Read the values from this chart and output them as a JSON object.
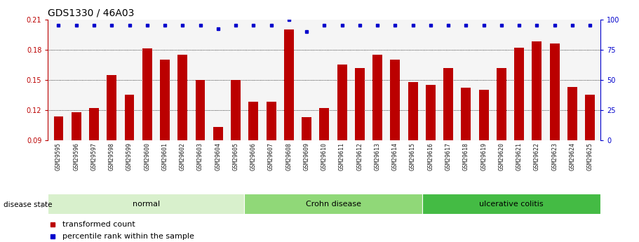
{
  "title": "GDS1330 / 46A03",
  "samples": [
    "GSM29595",
    "GSM29596",
    "GSM29597",
    "GSM29598",
    "GSM29599",
    "GSM29600",
    "GSM29601",
    "GSM29602",
    "GSM29603",
    "GSM29604",
    "GSM29605",
    "GSM29606",
    "GSM29607",
    "GSM29608",
    "GSM29609",
    "GSM29610",
    "GSM29611",
    "GSM29612",
    "GSM29613",
    "GSM29614",
    "GSM29615",
    "GSM29616",
    "GSM29617",
    "GSM29618",
    "GSM29619",
    "GSM29620",
    "GSM29621",
    "GSM29622",
    "GSM29623",
    "GSM29624",
    "GSM29625"
  ],
  "bar_values": [
    0.114,
    0.118,
    0.122,
    0.155,
    0.135,
    0.181,
    0.17,
    0.175,
    0.15,
    0.103,
    0.15,
    0.128,
    0.128,
    0.2,
    0.113,
    0.122,
    0.165,
    0.162,
    0.175,
    0.17,
    0.148,
    0.145,
    0.162,
    0.142,
    0.14,
    0.162,
    0.182,
    0.188,
    0.186,
    0.143,
    0.135
  ],
  "percentile_values": [
    95,
    95,
    95,
    95,
    95,
    95,
    95,
    95,
    95,
    92,
    95,
    95,
    95,
    100,
    90,
    95,
    95,
    95,
    95,
    95,
    95,
    95,
    95,
    95,
    95,
    95,
    95,
    95,
    95,
    95,
    95
  ],
  "groups": [
    {
      "label": "normal",
      "start": 0,
      "end": 11,
      "color": "#d8f0cc"
    },
    {
      "label": "Crohn disease",
      "start": 11,
      "end": 21,
      "color": "#90d878"
    },
    {
      "label": "ulcerative colitis",
      "start": 21,
      "end": 31,
      "color": "#44bb44"
    }
  ],
  "bar_color": "#bb0000",
  "dot_color": "#0000cc",
  "ylim_left": [
    0.09,
    0.21
  ],
  "ybaseline": 0.09,
  "ylim_right": [
    0,
    100
  ],
  "yticks_left": [
    0.09,
    0.12,
    0.15,
    0.18,
    0.21
  ],
  "yticks_right": [
    0,
    25,
    50,
    75,
    100
  ],
  "grid_values": [
    0.12,
    0.15,
    0.18
  ],
  "bg_color": "#f5f5f5",
  "title_fontsize": 10,
  "tick_fontsize": 6,
  "label_fontsize": 8,
  "legend_items": [
    {
      "label": "transformed count",
      "color": "#bb0000",
      "marker": "s"
    },
    {
      "label": "percentile rank within the sample",
      "color": "#0000cc",
      "marker": "s"
    }
  ],
  "disease_state_label": "disease state"
}
